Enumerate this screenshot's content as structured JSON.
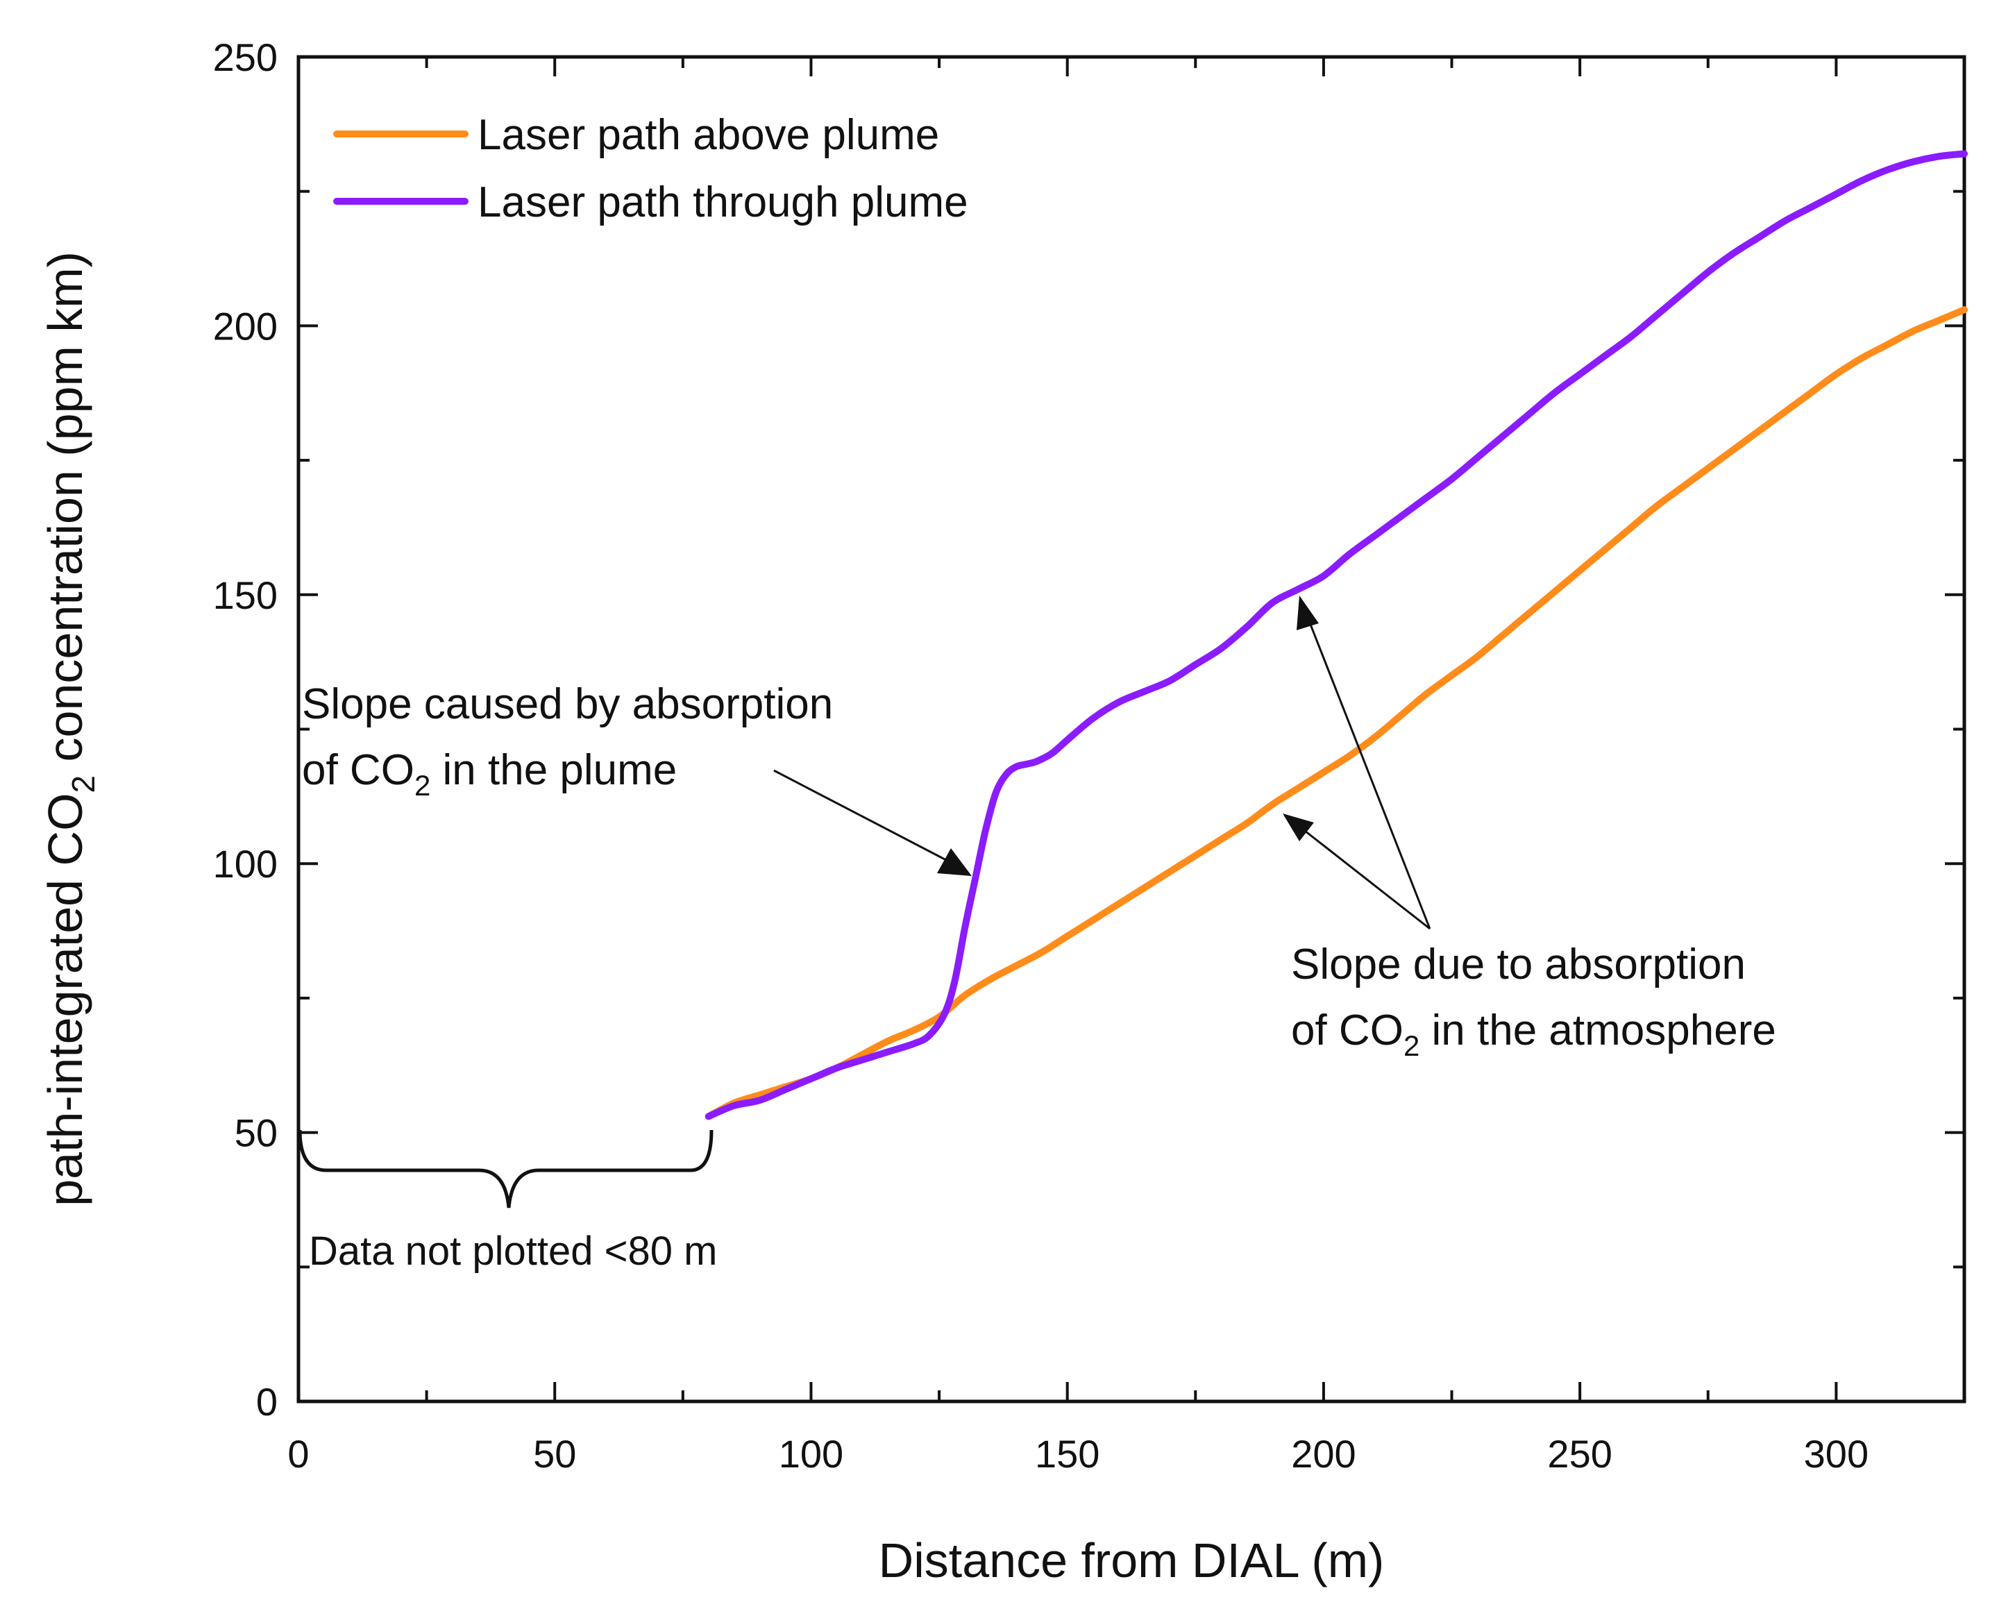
{
  "chart_data": {
    "type": "line",
    "xlabel": "Distance from DIAL (m)",
    "ylabel_parts": {
      "pre": "path-integrated CO",
      "sub": "2",
      "post": " concentration  (ppm km)"
    },
    "xlim": [
      0,
      325
    ],
    "ylim": [
      0,
      250
    ],
    "x_ticks": [
      0,
      50,
      100,
      150,
      200,
      250,
      300
    ],
    "y_ticks": [
      0,
      50,
      100,
      150,
      200,
      250
    ],
    "grid": false,
    "legend_position": "top-left",
    "colors": {
      "above": "#ff8c1a",
      "through": "#8a1cff",
      "axis": "#111111"
    },
    "series": [
      {
        "name": "Laser path above plume",
        "color": "#ff8c1a",
        "points": [
          [
            80,
            53
          ],
          [
            85,
            55.5
          ],
          [
            90,
            57
          ],
          [
            95,
            58.5
          ],
          [
            100,
            60
          ],
          [
            105,
            62
          ],
          [
            110,
            64.5
          ],
          [
            115,
            67
          ],
          [
            120,
            69
          ],
          [
            125,
            71.5
          ],
          [
            130,
            75.5
          ],
          [
            135,
            78.5
          ],
          [
            140,
            81
          ],
          [
            145,
            83.5
          ],
          [
            150,
            86.5
          ],
          [
            155,
            89.5
          ],
          [
            160,
            92.5
          ],
          [
            165,
            95.5
          ],
          [
            170,
            98.5
          ],
          [
            175,
            101.5
          ],
          [
            180,
            104.5
          ],
          [
            185,
            107.5
          ],
          [
            190,
            111
          ],
          [
            195,
            114
          ],
          [
            200,
            117
          ],
          [
            205,
            120
          ],
          [
            210,
            123.5
          ],
          [
            215,
            127.5
          ],
          [
            220,
            131.5
          ],
          [
            225,
            135
          ],
          [
            230,
            138.5
          ],
          [
            235,
            142.5
          ],
          [
            240,
            146.5
          ],
          [
            245,
            150.5
          ],
          [
            250,
            154.5
          ],
          [
            255,
            158.5
          ],
          [
            260,
            162.5
          ],
          [
            265,
            166.5
          ],
          [
            270,
            170
          ],
          [
            275,
            173.5
          ],
          [
            280,
            177
          ],
          [
            285,
            180.5
          ],
          [
            290,
            184
          ],
          [
            295,
            187.5
          ],
          [
            300,
            191
          ],
          [
            305,
            194
          ],
          [
            310,
            196.5
          ],
          [
            315,
            199
          ],
          [
            320,
            201
          ],
          [
            325,
            203
          ]
        ]
      },
      {
        "name": "Laser path through plume",
        "color": "#8a1cff",
        "points": [
          [
            80,
            53
          ],
          [
            85,
            55
          ],
          [
            90,
            56
          ],
          [
            95,
            58
          ],
          [
            100,
            60
          ],
          [
            105,
            62
          ],
          [
            110,
            63.5
          ],
          [
            115,
            65
          ],
          [
            120,
            66.5
          ],
          [
            123,
            68
          ],
          [
            126,
            72
          ],
          [
            128,
            78
          ],
          [
            130,
            88
          ],
          [
            132,
            97
          ],
          [
            134,
            106
          ],
          [
            136,
            113
          ],
          [
            138,
            116.5
          ],
          [
            140,
            118
          ],
          [
            142,
            118.5
          ],
          [
            144,
            119
          ],
          [
            147,
            120.5
          ],
          [
            150,
            123
          ],
          [
            155,
            127
          ],
          [
            160,
            130
          ],
          [
            165,
            132
          ],
          [
            170,
            134
          ],
          [
            175,
            137
          ],
          [
            180,
            140
          ],
          [
            185,
            144
          ],
          [
            190,
            148.5
          ],
          [
            195,
            151
          ],
          [
            200,
            153.5
          ],
          [
            205,
            157.5
          ],
          [
            210,
            161
          ],
          [
            215,
            164.5
          ],
          [
            220,
            168
          ],
          [
            225,
            171.5
          ],
          [
            230,
            175.5
          ],
          [
            235,
            179.5
          ],
          [
            240,
            183.5
          ],
          [
            245,
            187.5
          ],
          [
            250,
            191
          ],
          [
            255,
            194.5
          ],
          [
            260,
            198
          ],
          [
            265,
            202
          ],
          [
            270,
            206
          ],
          [
            275,
            210
          ],
          [
            280,
            213.5
          ],
          [
            285,
            216.5
          ],
          [
            290,
            219.5
          ],
          [
            295,
            222
          ],
          [
            300,
            224.5
          ],
          [
            305,
            227
          ],
          [
            310,
            229
          ],
          [
            315,
            230.5
          ],
          [
            320,
            231.5
          ],
          [
            325,
            232
          ]
        ]
      }
    ],
    "annotations": {
      "plume": {
        "line1": "Slope caused by absorption",
        "line2_pre": "of CO",
        "line2_sub": "2",
        "line2_post": " in the plume"
      },
      "atmos": {
        "line1": "Slope due to absorption",
        "line2_pre": "of CO",
        "line2_sub": "2",
        "line2_post": " in the atmosphere"
      },
      "not_plotted": "Data not plotted <80 m"
    }
  }
}
